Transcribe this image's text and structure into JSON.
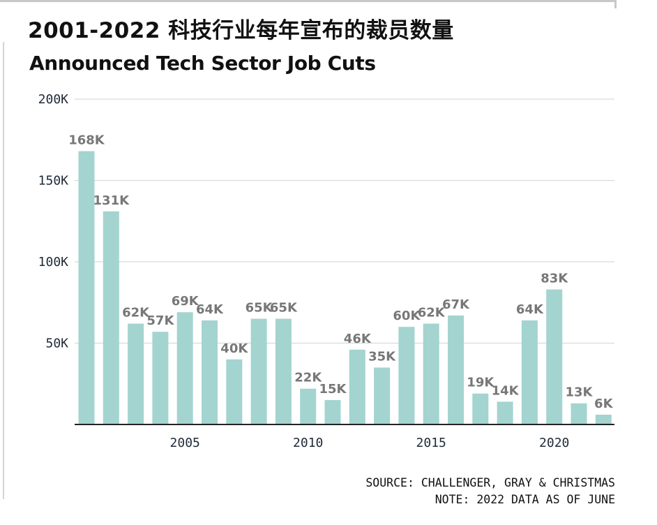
{
  "title_zh": "2001-2022 科技行业每年宣布的裁员数量",
  "title_en": "Announced Tech Sector Job Cuts",
  "source_line": "SOURCE: CHALLENGER, GRAY & CHRISTMAS",
  "note_line": "NOTE: 2022 DATA AS OF JUNE",
  "colors": {
    "bar": "#a3d4d0",
    "grid": "#d9d9d9",
    "axis": "#222222",
    "data_label": "#777777"
  },
  "chart_data": {
    "type": "bar",
    "title": "2001-2022 科技行业每年宣布的裁员数量",
    "subtitle": "Announced Tech Sector Job Cuts",
    "xlabel": "",
    "ylabel": "",
    "categories": [
      2001,
      2002,
      2003,
      2004,
      2005,
      2006,
      2007,
      2008,
      2009,
      2010,
      2011,
      2012,
      2013,
      2014,
      2015,
      2016,
      2017,
      2018,
      2019,
      2020,
      2021,
      2022
    ],
    "values": [
      168000,
      131000,
      62000,
      57000,
      69000,
      64000,
      40000,
      65000,
      65000,
      22000,
      15000,
      46000,
      35000,
      60000,
      62000,
      67000,
      19000,
      14000,
      64000,
      83000,
      13000,
      6000
    ],
    "data_labels": [
      "168K",
      "131K",
      "62K",
      "57K",
      "69K",
      "64K",
      "40K",
      "65K",
      "65K",
      "22K",
      "15K",
      "46K",
      "35K",
      "60K",
      "62K",
      "67K",
      "19K",
      "14K",
      "64K",
      "83K",
      "13K",
      "6K"
    ],
    "ylim": [
      0,
      200000
    ],
    "y_ticks": [
      50000,
      100000,
      150000,
      200000
    ],
    "y_tick_labels": [
      "50K",
      "100K",
      "150K",
      "200K"
    ],
    "x_ticks": [
      2005,
      2010,
      2015,
      2020
    ],
    "x_tick_labels": [
      "2005",
      "2010",
      "2015",
      "2020"
    ],
    "grid": true,
    "legend": "none"
  }
}
